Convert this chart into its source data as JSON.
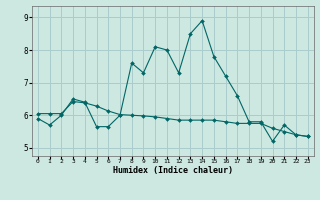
{
  "xlabel": "Humidex (Indice chaleur)",
  "ylabel": "",
  "background_color": "#cce8e0",
  "grid_color": "#aacccc",
  "line_color": "#006666",
  "xlim": [
    -0.5,
    23.5
  ],
  "ylim": [
    4.75,
    9.35
  ],
  "yticks": [
    5,
    6,
    7,
    8,
    9
  ],
  "xticks": [
    0,
    1,
    2,
    3,
    4,
    5,
    6,
    7,
    8,
    9,
    10,
    11,
    12,
    13,
    14,
    15,
    16,
    17,
    18,
    19,
    20,
    21,
    22,
    23
  ],
  "line1_x": [
    0,
    1,
    2,
    3,
    4,
    5,
    6,
    7,
    8,
    9,
    10,
    11,
    12,
    13,
    14,
    15,
    16,
    17,
    18,
    19,
    20,
    21,
    22,
    23
  ],
  "line1_y": [
    5.9,
    5.7,
    6.0,
    6.5,
    6.4,
    5.65,
    5.65,
    6.0,
    7.6,
    7.3,
    8.1,
    8.0,
    7.3,
    8.5,
    8.9,
    7.8,
    7.2,
    6.6,
    5.8,
    5.8,
    5.2,
    5.7,
    5.4,
    5.35
  ],
  "line2_x": [
    0,
    1,
    2,
    3,
    4,
    5,
    6,
    7,
    8,
    9,
    10,
    11,
    12,
    13,
    14,
    15,
    16,
    17,
    18,
    19,
    20,
    21,
    22,
    23
  ],
  "line2_y": [
    6.05,
    6.05,
    6.05,
    6.42,
    6.38,
    6.28,
    6.13,
    6.02,
    6.0,
    5.98,
    5.95,
    5.9,
    5.85,
    5.85,
    5.85,
    5.85,
    5.8,
    5.75,
    5.75,
    5.75,
    5.6,
    5.5,
    5.4,
    5.35
  ]
}
